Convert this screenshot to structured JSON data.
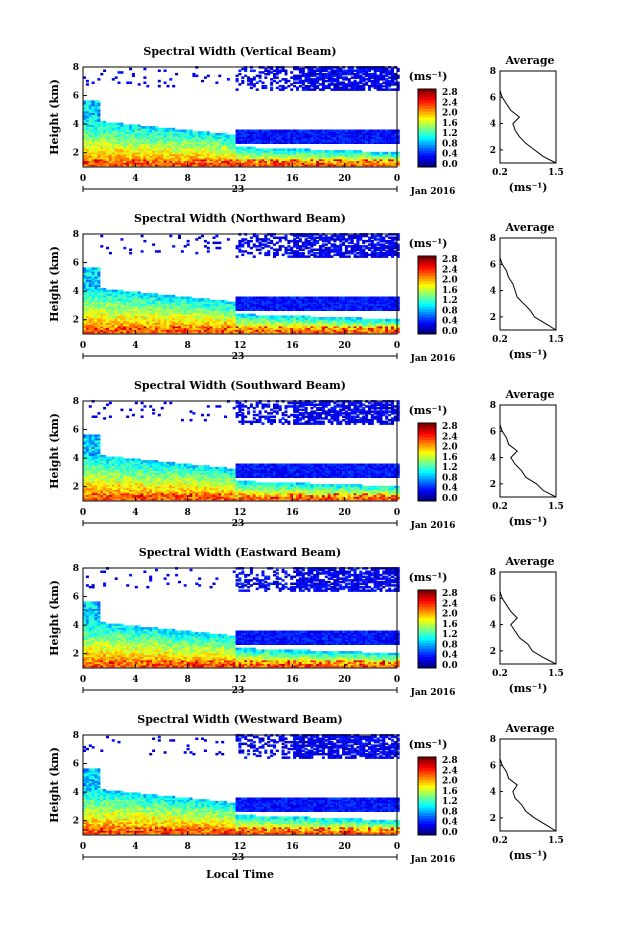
{
  "figure": {
    "month_label": "Jan 2016",
    "date_label": "23",
    "xlabel": "Local Time",
    "time_ticks": [
      "0",
      "4",
      "8",
      "12",
      "16",
      "20",
      "0"
    ],
    "colorbar": {
      "unit": "(ms⁻¹)",
      "tick_labels": [
        "2.8",
        "2.4",
        "2.0",
        "1.6",
        "1.2",
        "0.8",
        "0.4",
        "0.0"
      ],
      "colormap": "jet",
      "range": [
        0.0,
        2.8
      ]
    }
  },
  "chart_data": [
    {
      "type": "heatmap",
      "title": "Spectral Width (Vertical Beam)",
      "ylabel": "Height (km)",
      "xlim": [
        0,
        24
      ],
      "ylim": [
        1,
        8
      ],
      "x_ticks": [
        "0",
        "4",
        "8",
        "12",
        "16",
        "20",
        "0"
      ],
      "y_ticks": [
        "2",
        "4",
        "6",
        "8"
      ],
      "colorbar_unit": "(ms⁻¹)",
      "colorbar_ticks": [
        "2.8",
        "2.4",
        "2.0",
        "1.6",
        "1.2",
        "0.8",
        "0.4",
        "0.0"
      ],
      "profile": {
        "title": "Average",
        "xlabel": "(ms⁻¹)",
        "x_ticks": [
          "0.2",
          "1.5"
        ],
        "y_ticks": [
          "2",
          "4",
          "6",
          "8"
        ],
        "xlim": [
          0.2,
          1.5
        ],
        "ylim": [
          1,
          8
        ],
        "height_km": [
          1.0,
          1.5,
          2.0,
          2.5,
          3.0,
          3.5,
          4.0,
          4.5,
          5.0,
          5.5,
          6.0,
          6.5
        ],
        "width_ms": [
          1.5,
          1.2,
          1.0,
          0.8,
          0.65,
          0.55,
          0.5,
          0.65,
          0.45,
          0.35,
          0.25,
          0.2
        ]
      }
    },
    {
      "type": "heatmap",
      "title": "Spectral Width (Northward Beam)",
      "ylabel": "Height (km)",
      "xlim": [
        0,
        24
      ],
      "ylim": [
        1,
        8
      ],
      "x_ticks": [
        "0",
        "4",
        "8",
        "12",
        "16",
        "20",
        "0"
      ],
      "y_ticks": [
        "2",
        "4",
        "6",
        "8"
      ],
      "colorbar_unit": "(ms⁻¹)",
      "colorbar_ticks": [
        "2.8",
        "2.4",
        "2.0",
        "1.6",
        "1.2",
        "0.8",
        "0.4",
        "0.0"
      ],
      "profile": {
        "title": "Average",
        "xlabel": "(ms⁻¹)",
        "x_ticks": [
          "0.2",
          "1.5"
        ],
        "y_ticks": [
          "2",
          "4",
          "6",
          "8"
        ],
        "xlim": [
          0.2,
          1.5
        ],
        "ylim": [
          1,
          8
        ],
        "height_km": [
          1.0,
          1.5,
          2.0,
          2.5,
          3.0,
          3.5,
          4.0,
          4.5,
          5.0,
          5.5,
          6.0,
          6.5
        ],
        "width_ms": [
          1.5,
          1.25,
          1.0,
          0.9,
          0.75,
          0.6,
          0.55,
          0.5,
          0.4,
          0.35,
          0.25,
          0.2
        ]
      }
    },
    {
      "type": "heatmap",
      "title": "Spectral Width (Southward Beam)",
      "ylabel": "Height (km)",
      "xlim": [
        0,
        24
      ],
      "ylim": [
        1,
        8
      ],
      "x_ticks": [
        "0",
        "4",
        "8",
        "12",
        "16",
        "20",
        "0"
      ],
      "y_ticks": [
        "2",
        "4",
        "6",
        "8"
      ],
      "colorbar_unit": "(ms⁻¹)",
      "colorbar_ticks": [
        "2.8",
        "2.4",
        "2.0",
        "1.6",
        "1.2",
        "0.8",
        "0.4",
        "0.0"
      ],
      "profile": {
        "title": "Average",
        "xlabel": "(ms⁻¹)",
        "x_ticks": [
          "0.2",
          "1.5"
        ],
        "y_ticks": [
          "2",
          "4",
          "6",
          "8"
        ],
        "xlim": [
          0.2,
          1.5
        ],
        "ylim": [
          1,
          8
        ],
        "height_km": [
          1.0,
          1.5,
          2.0,
          2.5,
          3.0,
          3.5,
          4.0,
          4.5,
          5.0,
          5.5,
          6.0,
          6.5
        ],
        "width_ms": [
          1.5,
          1.2,
          1.05,
          0.8,
          0.7,
          0.55,
          0.45,
          0.6,
          0.4,
          0.35,
          0.25,
          0.2
        ]
      }
    },
    {
      "type": "heatmap",
      "title": "Spectral Width (Eastward Beam)",
      "ylabel": "Height (km)",
      "xlim": [
        0,
        24
      ],
      "ylim": [
        1,
        8
      ],
      "x_ticks": [
        "0",
        "4",
        "8",
        "12",
        "16",
        "20",
        "0"
      ],
      "y_ticks": [
        "2",
        "4",
        "6",
        "8"
      ],
      "colorbar_unit": "(ms⁻¹)",
      "colorbar_ticks": [
        "2.8",
        "2.4",
        "2.0",
        "1.6",
        "1.2",
        "0.8",
        "0.4",
        "0.0"
      ],
      "profile": {
        "title": "Average",
        "xlabel": "(ms⁻¹)",
        "x_ticks": [
          "0.2",
          "1.5"
        ],
        "y_ticks": [
          "2",
          "4",
          "6",
          "8"
        ],
        "xlim": [
          0.2,
          1.5
        ],
        "ylim": [
          1,
          8
        ],
        "height_km": [
          1.0,
          1.5,
          2.0,
          2.5,
          3.0,
          3.5,
          4.0,
          4.5,
          5.0,
          5.5,
          6.0,
          6.5
        ],
        "width_ms": [
          1.5,
          1.2,
          0.95,
          0.85,
          0.65,
          0.55,
          0.45,
          0.6,
          0.45,
          0.35,
          0.25,
          0.2
        ]
      }
    },
    {
      "type": "heatmap",
      "title": "Spectral Width (Westward Beam)",
      "ylabel": "Height (km)",
      "xlim": [
        0,
        24
      ],
      "ylim": [
        1,
        8
      ],
      "x_ticks": [
        "0",
        "4",
        "8",
        "12",
        "16",
        "20",
        "0"
      ],
      "y_ticks": [
        "2",
        "4",
        "6",
        "8"
      ],
      "colorbar_unit": "(ms⁻¹)",
      "colorbar_ticks": [
        "2.8",
        "2.4",
        "2.0",
        "1.6",
        "1.2",
        "0.8",
        "0.4",
        "0.0"
      ],
      "profile": {
        "title": "Average",
        "xlabel": "(ms⁻¹)",
        "x_ticks": [
          "0.2",
          "1.5"
        ],
        "y_ticks": [
          "2",
          "4",
          "6",
          "8"
        ],
        "xlim": [
          0.2,
          1.5
        ],
        "ylim": [
          1,
          8
        ],
        "height_km": [
          1.0,
          1.5,
          2.0,
          2.5,
          3.0,
          3.5,
          4.0,
          4.5,
          5.0,
          5.5,
          6.0,
          6.5
        ],
        "width_ms": [
          1.5,
          1.25,
          1.0,
          0.8,
          0.7,
          0.55,
          0.5,
          0.6,
          0.4,
          0.35,
          0.25,
          0.2
        ]
      }
    }
  ]
}
